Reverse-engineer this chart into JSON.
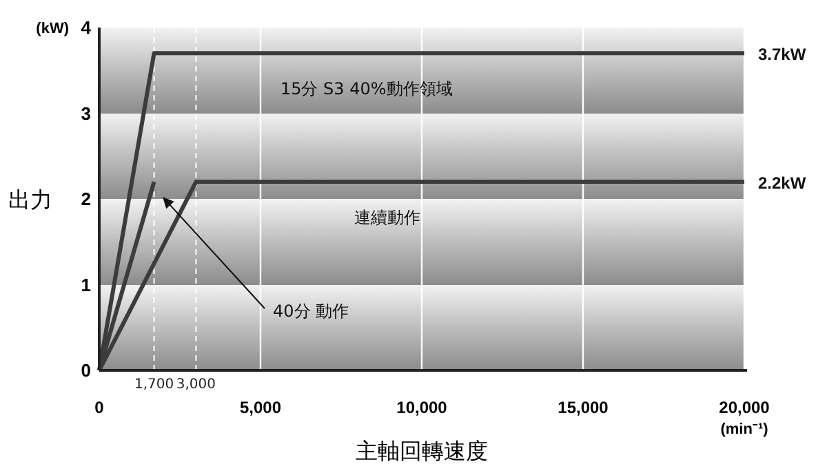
{
  "chart_data": {
    "type": "line",
    "xlabel": "主軸回轉速度",
    "ylabel": "出力",
    "xlim": [
      0,
      20000
    ],
    "xticks": [
      {
        "value": 0,
        "label": "0"
      },
      {
        "value": 5000,
        "label": "5,000"
      },
      {
        "value": 10000,
        "label": "10,000"
      },
      {
        "value": 15000,
        "label": "15,000"
      },
      {
        "value": 20000,
        "label": "20,000"
      }
    ],
    "ylim": [
      0,
      4
    ],
    "yticks": [
      0,
      1,
      2,
      3,
      4
    ],
    "grid": "x",
    "marker": "none",
    "line_style": "solid",
    "series": [
      {
        "name": "15分 S3 40%動作領域",
        "color": "#3c3c3c",
        "x": [
          0,
          1700,
          20000
        ],
        "values": [
          0,
          3.7,
          3.7
        ],
        "value_labels": [
          null,
          null,
          "3.7kW"
        ]
      },
      {
        "color": "#3c3c3c",
        "x": [
          0,
          1700
        ],
        "values": [
          0,
          2.2
        ]
      },
      {
        "name": "連續動作",
        "color": "#3c3c3c",
        "x": [
          0,
          3000,
          20000
        ],
        "values": [
          0,
          2.2,
          2.2
        ],
        "value_labels": [
          null,
          null,
          "2.2kW"
        ]
      }
    ],
    "ref_lines": [
      {
        "axis": "x",
        "value": 1700,
        "label": "1,700",
        "color": "#ffffff",
        "line_style": "dashed"
      },
      {
        "axis": "x",
        "value": 3000,
        "label": "3,000",
        "color": "#ffffff",
        "line_style": "dashed"
      }
    ],
    "annotations": [
      "(kW)",
      "(min⁻¹)",
      "40分 動作"
    ]
  }
}
